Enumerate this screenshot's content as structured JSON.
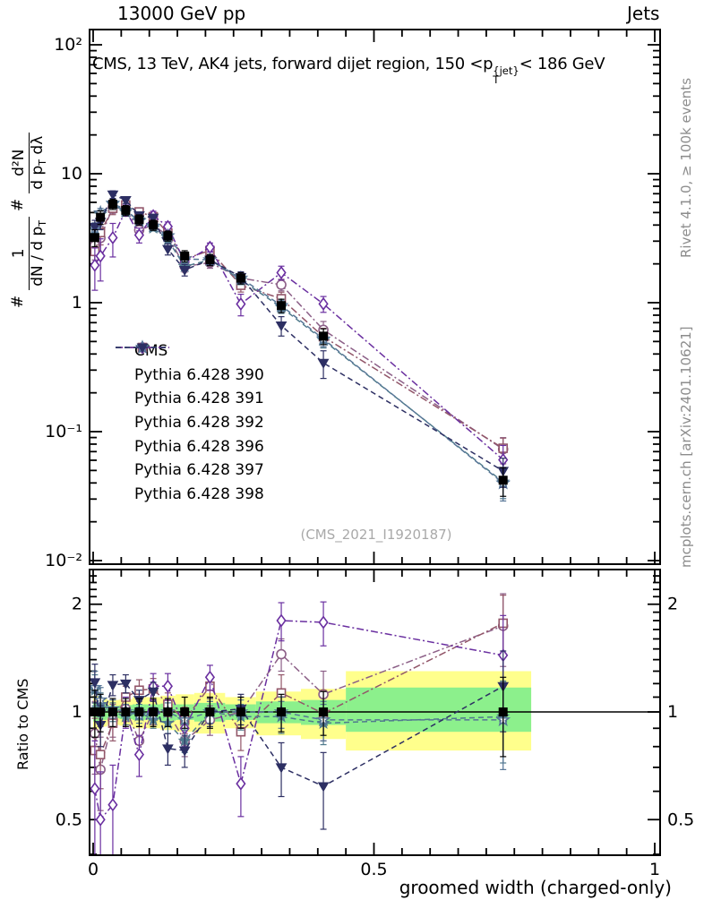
{
  "header": {
    "left": "13000 GeV pp",
    "right": "Jets"
  },
  "title": {
    "pre": "CMS, 13 TeV, AK4 jets, forward dijet region, 150 <p",
    "sup": "{jet}",
    "sub": "T",
    "post": "< 186 GeV"
  },
  "ylabel": {
    "hash": "#",
    "num1": "1",
    "den1_pre": "dN / d p",
    "den1_sub": "T",
    "num2": "d²N",
    "den2_pre": "d p",
    "den2_sub": "T",
    "den2_post": " dλ"
  },
  "ratio_ylabel": "Ratio to CMS",
  "xlabel": "groomed width (charged-only)",
  "watermark": "(CMS_2021_I1920187)",
  "side_notes": {
    "top": "Rivet 4.1.0, ≥ 100k events",
    "bottom": "mcplots.cern.ch [arXiv:2401.10621]"
  },
  "colors": {
    "band_green": "#8cf08c",
    "band_yellow": "#ffff8c",
    "frame": "#000000",
    "gray_text": "#8c8c8c"
  },
  "chart_data": {
    "type": "line",
    "title": "CMS, 13 TeV, AK4 jets, forward dijet region, 150 < pT{jet} < 186 GeV",
    "xlabel": "groomed width (charged-only)",
    "ylabel_main": "# 1/(dN/dpT) # d2N/(dpT dlambda)",
    "ylabel_ratio": "Ratio to CMS",
    "x_axis": {
      "lim": [
        0,
        1
      ],
      "scale": "linear",
      "major_ticks": [
        {
          "v": 0,
          "label": "0"
        },
        {
          "v": 0.5,
          "label": "0.5"
        },
        {
          "v": 1,
          "label": "1"
        }
      ],
      "minor_step": 0.05
    },
    "main_axis": {
      "scale": "log",
      "ticks": [
        {
          "v": 100,
          "label": "10²"
        },
        {
          "v": 10,
          "label": "10"
        },
        {
          "v": 1,
          "label": "1"
        },
        {
          "v": 0.1,
          "label": "10⁻¹"
        },
        {
          "v": 0.01,
          "label": "10⁻²"
        }
      ]
    },
    "ratio_axis": {
      "scale": "log",
      "lim": [
        0.4,
        2.5
      ],
      "ticks": [
        {
          "v": 2,
          "label": "2"
        },
        {
          "v": 1,
          "label": "1"
        },
        {
          "v": 0.5,
          "label": "0.5"
        }
      ]
    },
    "x": [
      0.003,
      0.013,
      0.035,
      0.058,
      0.082,
      0.107,
      0.133,
      0.163,
      0.208,
      0.263,
      0.335,
      0.41,
      0.73
    ],
    "cms": {
      "label": "CMS",
      "marker": "square-filled",
      "color": "#000000",
      "values": [
        3.2,
        4.6,
        5.8,
        5.2,
        4.4,
        4.0,
        3.3,
        2.3,
        2.15,
        1.55,
        0.95,
        0.55,
        0.042
      ],
      "err_frac": [
        0.15,
        0.12,
        0.09,
        0.09,
        0.09,
        0.09,
        0.09,
        0.1,
        0.1,
        0.1,
        0.12,
        0.14,
        0.25
      ]
    },
    "series": [
      {
        "name": "Pythia 6.428 390",
        "marker": "circle-open",
        "line": "dashdot",
        "color": "#8c5f87",
        "ratio": [
          0.87,
          0.69,
          0.95,
          1.02,
          0.83,
          1.0,
          1.0,
          0.83,
          0.95,
          1.0,
          1.45,
          1.12,
          1.74
        ],
        "ratio_err": [
          0.2,
          0.16,
          0.1,
          0.08,
          0.08,
          0.08,
          0.08,
          0.08,
          0.09,
          0.1,
          0.15,
          0.18,
          0.4
        ]
      },
      {
        "name": "Pythia 6.428 391",
        "marker": "square-open",
        "line": "dashdot",
        "color": "#925669",
        "ratio": [
          0.78,
          0.76,
          0.93,
          1.1,
          1.15,
          1.16,
          1.05,
          0.95,
          1.18,
          0.88,
          1.13,
          0.99,
          1.77
        ],
        "ratio_err": [
          0.18,
          0.15,
          0.1,
          0.08,
          0.08,
          0.08,
          0.08,
          0.08,
          0.09,
          0.1,
          0.14,
          0.16,
          0.35
        ]
      },
      {
        "name": "Pythia 6.428 392",
        "marker": "diamond-open",
        "line": "dashdot",
        "color": "#6a2fa0",
        "ratio": [
          0.61,
          0.5,
          0.55,
          1.0,
          0.76,
          1.18,
          1.18,
          0.9,
          1.25,
          0.63,
          1.8,
          1.78,
          1.44
        ],
        "ratio_err": [
          0.22,
          0.18,
          0.16,
          0.1,
          0.1,
          0.1,
          0.1,
          0.1,
          0.1,
          0.12,
          0.22,
          0.25,
          0.42
        ]
      },
      {
        "name": "Pythia 6.428 396",
        "marker": "star-filled",
        "line": "dashed",
        "color": "#4f7a8c",
        "ratio": [
          1.15,
          1.05,
          1.0,
          0.97,
          1.0,
          0.95,
          0.93,
          0.83,
          1.0,
          0.97,
          0.97,
          0.93,
          0.97
        ],
        "ratio_err": [
          0.12,
          0.08,
          0.06,
          0.05,
          0.05,
          0.05,
          0.06,
          0.06,
          0.07,
          0.08,
          0.1,
          0.12,
          0.25
        ]
      },
      {
        "name": "Pythia 6.428 397",
        "marker": "star-open",
        "line": "dashed",
        "color": "#567596",
        "ratio": [
          1.17,
          1.08,
          1.02,
          1.0,
          0.98,
          0.98,
          1.0,
          0.95,
          1.0,
          1.0,
          1.0,
          0.95,
          0.95
        ],
        "ratio_err": [
          0.13,
          0.09,
          0.06,
          0.05,
          0.05,
          0.05,
          0.06,
          0.06,
          0.07,
          0.08,
          0.1,
          0.12,
          0.26
        ]
      },
      {
        "name": "Pythia 6.428 398",
        "marker": "triangle-down-filled",
        "line": "dashed",
        "color": "#2d2f63",
        "ratio": [
          1.21,
          0.92,
          1.19,
          1.2,
          1.08,
          1.14,
          0.79,
          0.78,
          1.0,
          1.02,
          0.7,
          0.62,
          1.18
        ],
        "ratio_err": [
          0.15,
          0.12,
          0.08,
          0.07,
          0.07,
          0.07,
          0.08,
          0.08,
          0.09,
          0.1,
          0.12,
          0.15,
          0.3
        ]
      }
    ],
    "ratio_bands": [
      {
        "x0": 0.0,
        "x1": 0.01,
        "glo": 0.94,
        "ghi": 1.06,
        "ylo": 0.89,
        "yhi": 1.11
      },
      {
        "x0": 0.01,
        "x1": 0.025,
        "glo": 0.95,
        "ghi": 1.05,
        "ylo": 0.91,
        "yhi": 1.09
      },
      {
        "x0": 0.025,
        "x1": 0.047,
        "glo": 0.96,
        "ghi": 1.04,
        "ylo": 0.92,
        "yhi": 1.08
      },
      {
        "x0": 0.047,
        "x1": 0.07,
        "glo": 0.955,
        "ghi": 1.045,
        "ylo": 0.915,
        "yhi": 1.085
      },
      {
        "x0": 0.07,
        "x1": 0.095,
        "glo": 0.95,
        "ghi": 1.05,
        "ylo": 0.9,
        "yhi": 1.1
      },
      {
        "x0": 0.095,
        "x1": 0.12,
        "glo": 0.95,
        "ghi": 1.05,
        "ylo": 0.9,
        "yhi": 1.1
      },
      {
        "x0": 0.12,
        "x1": 0.147,
        "glo": 0.945,
        "ghi": 1.055,
        "ylo": 0.89,
        "yhi": 1.11
      },
      {
        "x0": 0.147,
        "x1": 0.18,
        "glo": 0.95,
        "ghi": 1.05,
        "ylo": 0.88,
        "yhi": 1.12
      },
      {
        "x0": 0.18,
        "x1": 0.235,
        "glo": 0.94,
        "ghi": 1.06,
        "ylo": 0.87,
        "yhi": 1.13
      },
      {
        "x0": 0.235,
        "x1": 0.29,
        "glo": 0.95,
        "ghi": 1.05,
        "ylo": 0.9,
        "yhi": 1.1
      },
      {
        "x0": 0.29,
        "x1": 0.37,
        "glo": 0.93,
        "ghi": 1.07,
        "ylo": 0.86,
        "yhi": 1.14
      },
      {
        "x0": 0.37,
        "x1": 0.45,
        "glo": 0.92,
        "ghi": 1.08,
        "ylo": 0.84,
        "yhi": 1.16
      },
      {
        "x0": 0.45,
        "x1": 0.78,
        "glo": 0.88,
        "ghi": 1.17,
        "ylo": 0.78,
        "yhi": 1.3
      }
    ]
  }
}
